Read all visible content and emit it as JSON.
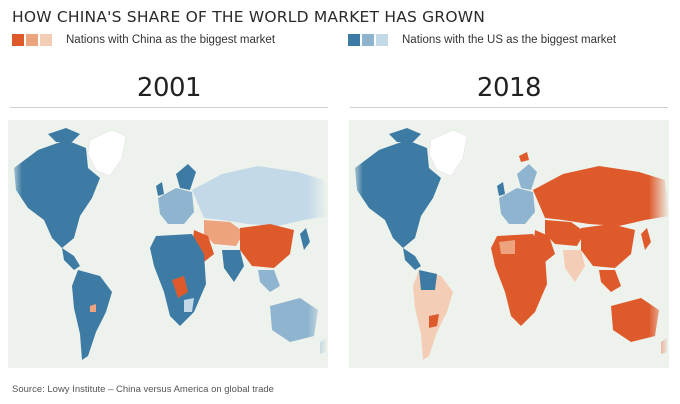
{
  "title": "HOW CHINA'S SHARE OF THE WORLD MARKET HAS GROWN",
  "legend": {
    "china": {
      "label": "Nations with China as the biggest market",
      "colors": [
        "#de5a2b",
        "#eea37f",
        "#f4cdb6"
      ]
    },
    "us": {
      "label": "Nations with the US as the biggest market",
      "colors": [
        "#3d7ba4",
        "#8fb4cf",
        "#c4d9e8"
      ]
    }
  },
  "maps": [
    {
      "year": "2001"
    },
    {
      "year": "2018"
    }
  ],
  "source": "Source: Lowy Institute – China versus America on global trade"
}
